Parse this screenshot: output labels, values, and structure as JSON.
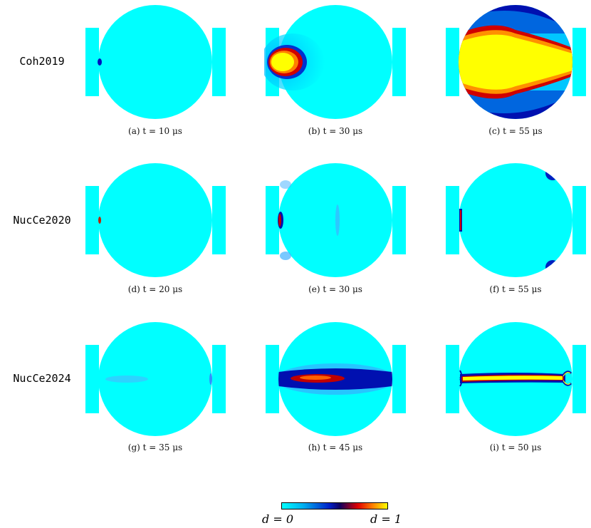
{
  "figure": {
    "rows": [
      {
        "label": "Coh2019",
        "panels": [
          {
            "caption": "(a) t = 10 μs"
          },
          {
            "caption": "(b) t = 30 μs"
          },
          {
            "caption": "(c) t = 55 μs"
          }
        ]
      },
      {
        "label": "NucCe2020",
        "panels": [
          {
            "caption": "(d) t = 20 μs"
          },
          {
            "caption": "(e) t = 30 μs"
          },
          {
            "caption": "(f) t = 55 μs"
          }
        ]
      },
      {
        "label": "NucCe2024",
        "panels": [
          {
            "caption": "(g) t = 35 μs"
          },
          {
            "caption": "(h) t = 45 μs"
          },
          {
            "caption": "(i) t = 50 μs"
          }
        ]
      }
    ],
    "colorbar": {
      "min_label": "d = 0",
      "max_label": "d = 1",
      "colors": [
        "#00ffff",
        "#0020c8",
        "#e00000",
        "#ffff00"
      ]
    },
    "specimen_color": "#00ffff"
  }
}
